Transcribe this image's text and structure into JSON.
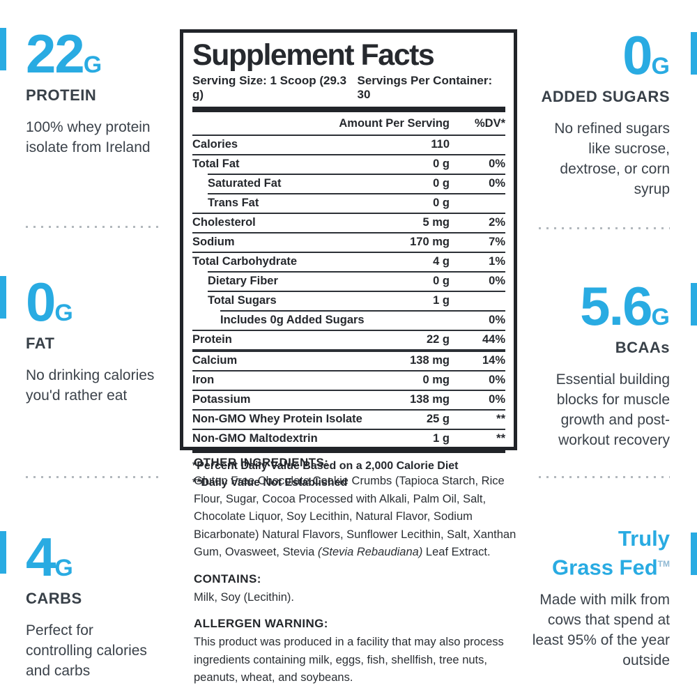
{
  "colors": {
    "accent": "#29abe2",
    "dark_text": "#3a4046",
    "panel_ink": "#212429"
  },
  "left_column": {
    "items": [
      {
        "value": "22",
        "unit": "G",
        "label": "PROTEIN",
        "description": "100% whey protein isolate from Ireland"
      },
      {
        "value": "0",
        "unit": "G",
        "label": "FAT",
        "description": "No drinking calories you'd rather eat"
      },
      {
        "value": "4",
        "unit": "G",
        "label": "CARBS",
        "description": "Perfect for controlling calories and carbs"
      }
    ]
  },
  "right_column": {
    "items": [
      {
        "value": "0",
        "unit": "G",
        "label": "ADDED SUGARS",
        "description": "No refined sugars like sucrose, dextrose, or corn syrup"
      },
      {
        "value": "5.6",
        "unit": "G",
        "label": "BCAAs",
        "description": "Essential building blocks for muscle growth and post-workout recovery"
      },
      {
        "heading_line1": "Truly",
        "heading_line2": "Grass Fed",
        "trademark": "TM",
        "description": "Made with milk from cows that spend at least 95% of the year outside"
      }
    ]
  },
  "panel": {
    "title": "Supplement Facts",
    "serving_size": "Serving Size: 1 Scoop (29.3 g)",
    "servings_per_container": "Servings Per Container: 30",
    "col_amount": "Amount Per Serving",
    "col_dv": "%DV*",
    "rows": [
      {
        "name": "Calories",
        "amount": "110",
        "dv": "",
        "indent": 0
      },
      {
        "name": "Total Fat",
        "amount": "0 g",
        "dv": "0%",
        "indent": 0
      },
      {
        "name": "Saturated Fat",
        "amount": "0 g",
        "dv": "0%",
        "indent": 1
      },
      {
        "name": "Trans Fat",
        "amount": "0 g",
        "dv": "",
        "indent": 1
      },
      {
        "name": "Cholesterol",
        "amount": "5 mg",
        "dv": "2%",
        "indent": 0
      },
      {
        "name": "Sodium",
        "amount": "170 mg",
        "dv": "7%",
        "indent": 0
      },
      {
        "name": "Total Carbohydrate",
        "amount": "4 g",
        "dv": "1%",
        "indent": 0
      },
      {
        "name": "Dietary Fiber",
        "amount": "0 g",
        "dv": "0%",
        "indent": 1
      },
      {
        "name": "Total Sugars",
        "amount": "1 g",
        "dv": "",
        "indent": 1
      },
      {
        "name": "Includes 0g Added Sugars",
        "amount": "",
        "dv": "0%",
        "indent": 2
      },
      {
        "name": "Protein",
        "amount": "22 g",
        "dv": "44%",
        "indent": 0
      },
      {
        "name": "Calcium",
        "amount": "138 mg",
        "dv": "14%",
        "indent": 0,
        "rule_above": "thick"
      },
      {
        "name": "Iron",
        "amount": "0 mg",
        "dv": "0%",
        "indent": 0
      },
      {
        "name": "Potassium",
        "amount": "138 mg",
        "dv": "0%",
        "indent": 0
      },
      {
        "name": "Non-GMO Whey Protein Isolate",
        "amount": "25 g",
        "dv": "**",
        "indent": 0
      },
      {
        "name": "Non-GMO Maltodextrin",
        "amount": "1 g",
        "dv": "**",
        "indent": 0
      }
    ],
    "footnotes": [
      "*Percent Daily Value Based on a 2,000 Calorie Diet",
      "**Daily Value Not Established"
    ]
  },
  "ingredients": {
    "other_heading": "OTHER INGREDIENTS:",
    "other_text_before_italic": "Gluten Free Chocolate Cookie Crumbs (Tapioca Starch, Rice Flour, Sugar, Cocoa Processed with Alkali, Palm Oil, Salt, Chocolate Liquor, Soy Lecithin, Natural Flavor, Sodium Bicarbonate) Natural Flavors, Sunflower Lecithin, Salt, Xanthan Gum, Ovasweet, Stevia ",
    "other_text_italic": "(Stevia Rebaudiana)",
    "other_text_after_italic": " Leaf Extract.",
    "contains_heading": "CONTAINS:",
    "contains_text": "Milk, Soy (Lecithin).",
    "allergen_heading": "ALLERGEN WARNING:",
    "allergen_text": "This product was produced in a facility that may also process ingredients containing milk, eggs, fish, shellfish, tree nuts, peanuts, wheat, and soybeans."
  }
}
